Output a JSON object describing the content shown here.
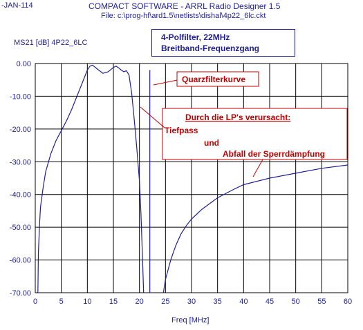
{
  "header": {
    "left_text": "-JAN-114",
    "title": "COMPACT SOFTWARE - ARRL Radio Designer 1.5",
    "file": "File: c:\\prog-hf\\ard1.5\\netlists\\dishal\\4p22_6lc.ckt"
  },
  "legend_box": {
    "line1": "4-Polfilter, 22MHz",
    "line2": "Breitband-Frequenzgang"
  },
  "annotations": {
    "quarz": "Quarzfilterkurve",
    "lp_heading": "Durch die LP's verursacht:",
    "tiefpass": "Tiefpass",
    "und": "und",
    "abfall": "Abfall der Sperrdämpfung"
  },
  "colors": {
    "trace": "#1e1e96",
    "annotation": "#c00000",
    "grid": "#000000"
  },
  "chart_data": {
    "type": "line",
    "ylabel": "MS21 [dB] 4P22_6LC",
    "xlabel": "Freq [MHz]",
    "xlim": [
      0,
      60
    ],
    "ylim": [
      -70,
      0
    ],
    "x_ticks": [
      "0",
      "5",
      "10",
      "15",
      "20",
      "25",
      "30",
      "35",
      "40",
      "45",
      "50",
      "55",
      "60"
    ],
    "y_ticks": [
      "0.00",
      "-10.00",
      "-20.00",
      "-30.00",
      "-40.00",
      "-50.00",
      "-60.00",
      "-70.00"
    ],
    "grid": true,
    "series": [
      {
        "name": "",
        "points": [
          [
            0.5,
            -70
          ],
          [
            0.6,
            -58
          ],
          [
            0.8,
            -50
          ],
          [
            1.0,
            -44
          ],
          [
            1.5,
            -38
          ],
          [
            2,
            -33
          ],
          [
            3,
            -27.5
          ],
          [
            4,
            -23.5
          ],
          [
            5,
            -20.5
          ],
          [
            6,
            -17.5
          ],
          [
            7,
            -14
          ],
          [
            8,
            -10
          ],
          [
            9,
            -6
          ],
          [
            10,
            -2
          ],
          [
            10.5,
            -0.8
          ],
          [
            11,
            -0.5
          ],
          [
            12,
            -1.8
          ],
          [
            13,
            -3
          ],
          [
            14,
            -2.5
          ],
          [
            15,
            -1.2
          ],
          [
            15.5,
            -0.8
          ],
          [
            16,
            -1.3
          ],
          [
            16.5,
            -2
          ],
          [
            17,
            -2.5
          ],
          [
            17.5,
            -2.2
          ],
          [
            18,
            -3.5
          ],
          [
            18.5,
            -9
          ],
          [
            19,
            -17
          ],
          [
            19.5,
            -26
          ],
          [
            20,
            -36
          ],
          [
            20.3,
            -46
          ],
          [
            20.6,
            -60
          ],
          [
            20.8,
            -70
          ]
        ]
      },
      {
        "name": "",
        "points": [
          [
            22,
            -70
          ],
          [
            22,
            -2
          ],
          [
            22,
            -70
          ]
        ]
      },
      {
        "name": "",
        "points": [
          [
            24.6,
            -70
          ],
          [
            25,
            -66
          ],
          [
            26,
            -60
          ],
          [
            27,
            -55.5
          ],
          [
            28,
            -52
          ],
          [
            29,
            -49.5
          ],
          [
            30,
            -47.5
          ],
          [
            32,
            -44.5
          ],
          [
            35,
            -41
          ],
          [
            38,
            -38.5
          ],
          [
            40,
            -37
          ],
          [
            45,
            -35
          ],
          [
            50,
            -33.5
          ],
          [
            55,
            -32
          ],
          [
            60,
            -31
          ]
        ]
      }
    ]
  }
}
